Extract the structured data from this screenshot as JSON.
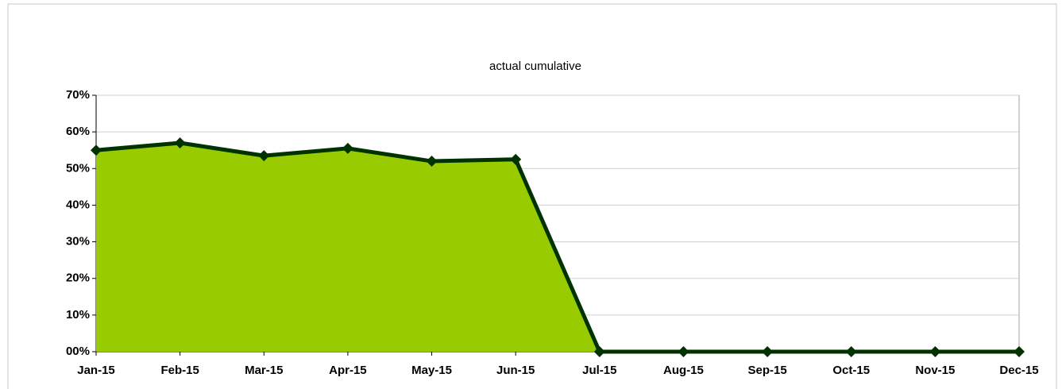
{
  "chart_data": {
    "type": "area",
    "title": "actual cumulative",
    "categories": [
      "Jan-15",
      "Feb-15",
      "Mar-15",
      "Apr-15",
      "May-15",
      "Jun-15",
      "Jul-15",
      "Aug-15",
      "Sep-15",
      "Oct-15",
      "Nov-15",
      "Dec-15"
    ],
    "values": [
      55,
      57,
      53.5,
      55.5,
      52,
      52.5,
      0,
      0,
      0,
      0,
      0,
      0
    ],
    "color": "#99cc00",
    "line_color": "#003300",
    "ylim": [
      0,
      70
    ],
    "yticks": [
      {
        "value": 0,
        "label": "00%"
      },
      {
        "value": 10,
        "label": "10%"
      },
      {
        "value": 20,
        "label": "20%"
      },
      {
        "value": 30,
        "label": "30%"
      },
      {
        "value": 40,
        "label": "40%"
      },
      {
        "value": 50,
        "label": "50%"
      },
      {
        "value": 60,
        "label": "60%"
      },
      {
        "value": 70,
        "label": "70%"
      }
    ],
    "grid": true
  }
}
